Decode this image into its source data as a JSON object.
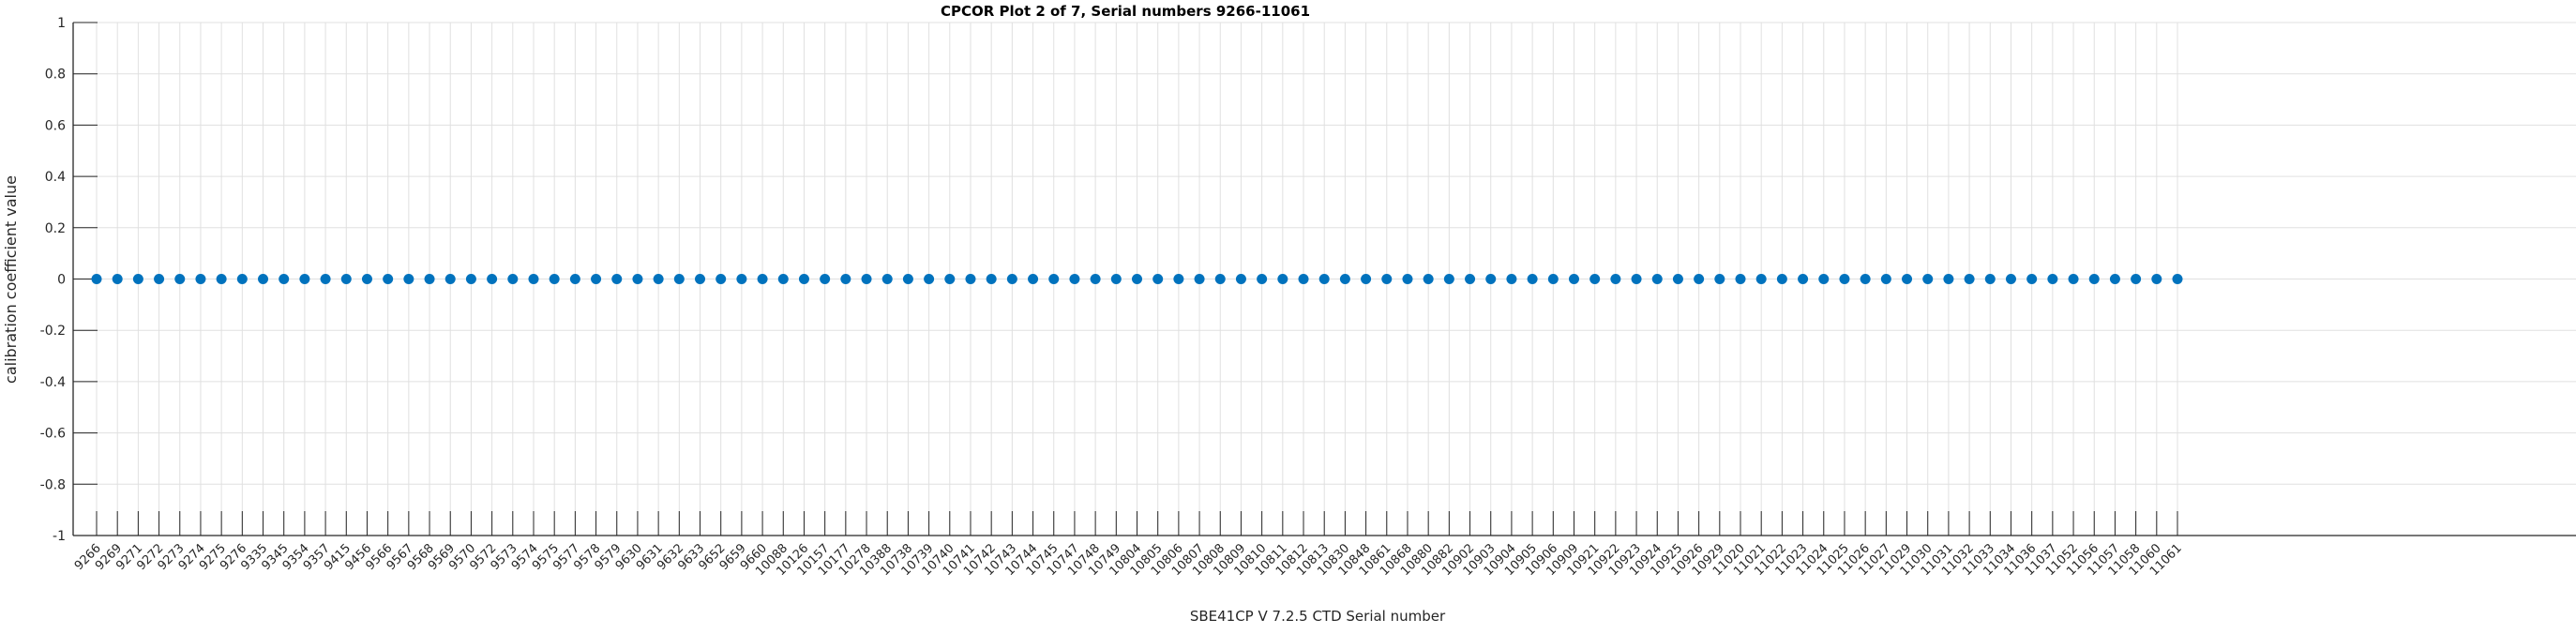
{
  "chart_data": {
    "type": "scatter",
    "title": "CPCOR Plot 2 of 7, Serial numbers 9266-11061",
    "xlabel": "SBE41CP V 7.2.5 CTD Serial number",
    "ylabel": "calibration coefficient value",
    "ylim": [
      -1,
      1
    ],
    "ytick_values": [
      1,
      0.8,
      0.6,
      0.4,
      0.2,
      0,
      -0.2,
      -0.4,
      -0.6,
      -0.8,
      -1
    ],
    "ytick_labels": [
      "1",
      "0.8",
      "0.6",
      "0.4",
      "0.2",
      "0",
      "-0.2",
      "-0.4",
      "-0.6",
      "-0.8",
      "-1"
    ],
    "grid": true,
    "legend": "none",
    "marker": "filled-circle",
    "marker_color": "#0072BD",
    "grid_color": "#e0e0e0",
    "axis_color": "#262626",
    "title_color": "#000000",
    "categories": [
      "9266",
      "9269",
      "9271",
      "9272",
      "9273",
      "9274",
      "9275",
      "9276",
      "9335",
      "9345",
      "9354",
      "9357",
      "9415",
      "9456",
      "9566",
      "9567",
      "9568",
      "9569",
      "9570",
      "9572",
      "9573",
      "9574",
      "9575",
      "9577",
      "9578",
      "9579",
      "9630",
      "9631",
      "9632",
      "9633",
      "9652",
      "9659",
      "9660",
      "10088",
      "10126",
      "10157",
      "10177",
      "10278",
      "10388",
      "10738",
      "10739",
      "10740",
      "10741",
      "10742",
      "10743",
      "10744",
      "10745",
      "10747",
      "10748",
      "10749",
      "10804",
      "10805",
      "10806",
      "10807",
      "10808",
      "10809",
      "10810",
      "10811",
      "10812",
      "10813",
      "10830",
      "10848",
      "10861",
      "10868",
      "10880",
      "10882",
      "10902",
      "10903",
      "10904",
      "10905",
      "10906",
      "10909",
      "10921",
      "10922",
      "10923",
      "10924",
      "10925",
      "10926",
      "10929",
      "11020",
      "11021",
      "11022",
      "11023",
      "11024",
      "11025",
      "11026",
      "11027",
      "11029",
      "11030",
      "11031",
      "11032",
      "11033",
      "11034",
      "11036",
      "11037",
      "11052",
      "11056",
      "11057",
      "11058",
      "11060",
      "11061"
    ],
    "values": [
      0,
      0,
      0,
      0,
      0,
      0,
      0,
      0,
      0,
      0,
      0,
      0,
      0,
      0,
      0,
      0,
      0,
      0,
      0,
      0,
      0,
      0,
      0,
      0,
      0,
      0,
      0,
      0,
      0,
      0,
      0,
      0,
      0,
      0,
      0,
      0,
      0,
      0,
      0,
      0,
      0,
      0,
      0,
      0,
      0,
      0,
      0,
      0,
      0,
      0,
      0,
      0,
      0,
      0,
      0,
      0,
      0,
      0,
      0,
      0,
      0,
      0,
      0,
      0,
      0,
      0,
      0,
      0,
      0,
      0,
      0,
      0,
      0,
      0,
      0,
      0,
      0,
      0,
      0,
      0,
      0,
      0,
      0,
      0,
      0,
      0,
      0,
      0,
      0,
      0,
      0,
      0,
      0,
      0,
      0,
      0,
      0,
      0,
      0,
      0,
      0
    ]
  }
}
